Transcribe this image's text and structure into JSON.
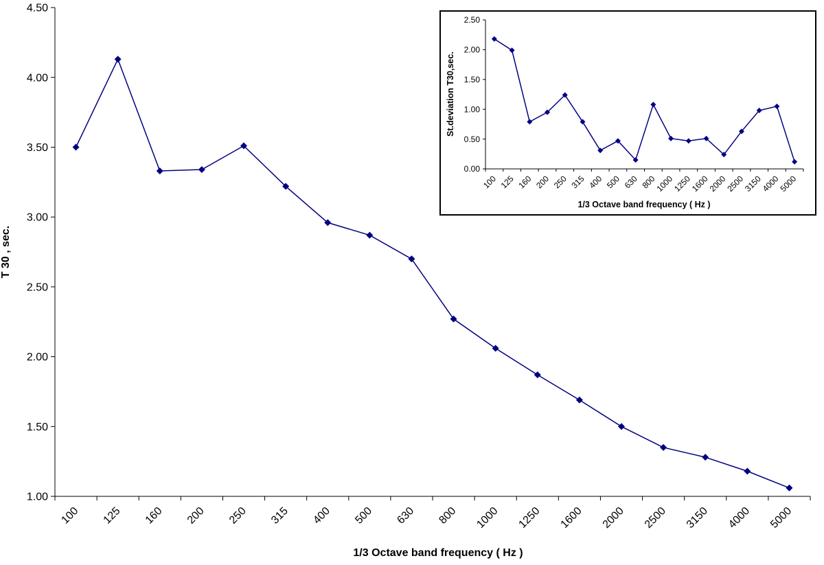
{
  "chart_data": [
    {
      "type": "line",
      "title": "",
      "xlabel": "1/3 Octave band frequency ( Hz )",
      "ylabel": "T 30 , sec.",
      "categories": [
        "100",
        "125",
        "160",
        "200",
        "250",
        "315",
        "400",
        "500",
        "630",
        "800",
        "1000",
        "1250",
        "1600",
        "2000",
        "2500",
        "3150",
        "4000",
        "5000"
      ],
      "y_ticks": [
        "1.00",
        "1.50",
        "2.00",
        "2.50",
        "3.00",
        "3.50",
        "4.00",
        "4.50"
      ],
      "ylim": [
        1.0,
        4.5
      ],
      "grid": false,
      "marker": "diamond",
      "color": "#000080",
      "series": [
        {
          "values": [
            3.5,
            4.13,
            3.33,
            3.34,
            3.51,
            3.22,
            2.96,
            2.87,
            2.7,
            2.27,
            2.06,
            1.87,
            1.69,
            1.5,
            1.35,
            1.28,
            1.18,
            1.06
          ]
        }
      ]
    },
    {
      "type": "line",
      "title": "",
      "xlabel": "1/3 Octave band frequency ( Hz )",
      "ylabel": "St.deviation T30,sec.",
      "categories": [
        "100",
        "125",
        "160",
        "200",
        "250",
        "315",
        "400",
        "500",
        "630",
        "800",
        "1000",
        "1250",
        "1600",
        "2000",
        "2500",
        "3150",
        "4000",
        "5000"
      ],
      "y_ticks": [
        "0.00",
        "0.50",
        "1.00",
        "1.50",
        "2.00",
        "2.50"
      ],
      "ylim": [
        0.0,
        2.5
      ],
      "grid": false,
      "marker": "diamond",
      "color": "#000080",
      "legend": "none",
      "placement": "inset top-right",
      "series": [
        {
          "values": [
            2.18,
            1.99,
            0.79,
            0.95,
            1.24,
            0.79,
            0.31,
            0.47,
            0.15,
            1.08,
            0.51,
            0.47,
            0.51,
            0.24,
            0.63,
            0.98,
            1.05,
            0.12
          ]
        }
      ]
    }
  ]
}
